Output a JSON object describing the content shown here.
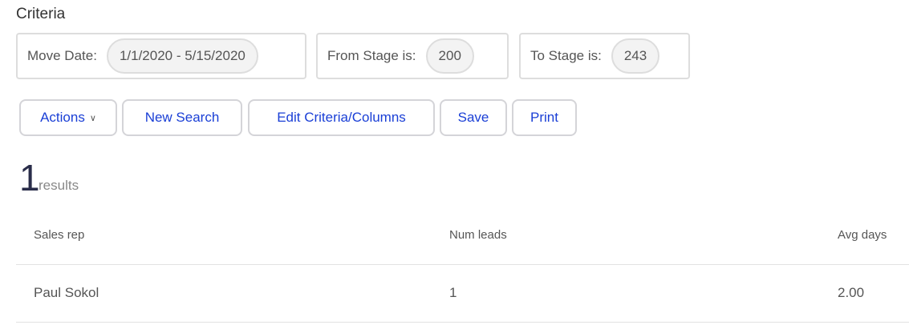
{
  "criteria": {
    "title": "Criteria",
    "items": [
      {
        "label": "Move Date:",
        "value": "1/1/2020 - 5/15/2020"
      },
      {
        "label": "From Stage is:",
        "value": "200"
      },
      {
        "label": "To Stage is:",
        "value": "243"
      }
    ]
  },
  "toolbar": {
    "actions": "Actions",
    "new_search": "New Search",
    "edit": "Edit Criteria/Columns",
    "save": "Save",
    "print": "Print"
  },
  "results": {
    "count": "1",
    "label": "results"
  },
  "table": {
    "headers": [
      "Sales rep",
      "Num leads",
      "Avg days"
    ],
    "rows": [
      [
        "Paul Sokol",
        "1",
        "2.00"
      ]
    ]
  }
}
